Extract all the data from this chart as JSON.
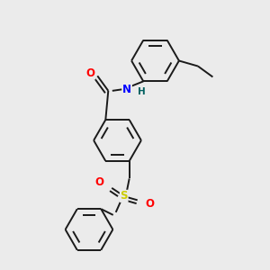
{
  "bg_color": "#ebebeb",
  "bond_color": "#1a1a1a",
  "N_color": "#0000ff",
  "O_color": "#ff0000",
  "S_color": "#cccc00",
  "H_color": "#006060",
  "lw": 1.4,
  "fs": 8.5,
  "r_ring": 0.088,
  "xlim": [
    0.0,
    1.0
  ],
  "ylim": [
    0.0,
    1.0
  ]
}
